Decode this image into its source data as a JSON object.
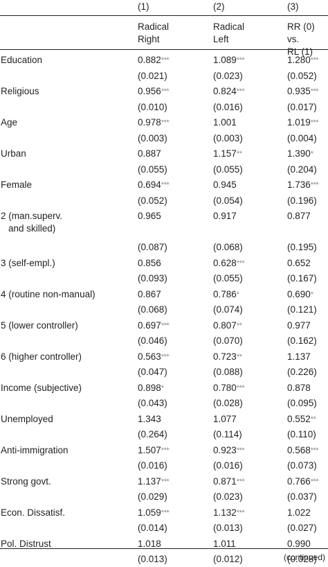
{
  "header": {
    "columns": [
      {
        "num": "(1)",
        "label_lines": [
          "Radical",
          "Right"
        ]
      },
      {
        "num": "(2)",
        "label_lines": [
          "Radical",
          "Left"
        ]
      },
      {
        "num": "(3)",
        "label_lines": [
          "RR (0) vs.",
          "RL (1)"
        ]
      }
    ]
  },
  "rows": [
    {
      "label": "Education",
      "coef": [
        [
          "0.882",
          "***"
        ],
        [
          "1.089",
          "***"
        ],
        [
          "1.280",
          "***"
        ]
      ],
      "se": [
        "(0.021)",
        "(0.023)",
        "(0.052)"
      ]
    },
    {
      "label": "Religious",
      "coef": [
        [
          "0.956",
          "***"
        ],
        [
          "0.824",
          "***"
        ],
        [
          "0.935",
          "***"
        ]
      ],
      "se": [
        "(0.010)",
        "(0.016)",
        "(0.017)"
      ]
    },
    {
      "label": "Age",
      "coef": [
        [
          "0.978",
          "***"
        ],
        [
          "1.001",
          ""
        ],
        [
          "1.019",
          "***"
        ]
      ],
      "se": [
        "(0.003)",
        "(0.003)",
        "(0.004)"
      ]
    },
    {
      "label": "Urban",
      "coef": [
        [
          "0.887",
          ""
        ],
        [
          "1.157",
          "**"
        ],
        [
          "1.390",
          "*"
        ]
      ],
      "se": [
        "(0.055)",
        "(0.055)",
        "(0.204)"
      ]
    },
    {
      "label": "Female",
      "coef": [
        [
          "0.694",
          "***"
        ],
        [
          "0.945",
          ""
        ],
        [
          "1.736",
          "***"
        ]
      ],
      "se": [
        "(0.052)",
        "(0.054)",
        "(0.196)"
      ]
    },
    {
      "label": "2 (man.superv.",
      "label2": "and skilled)",
      "coef": [
        [
          "0.965",
          ""
        ],
        [
          "0.917",
          ""
        ],
        [
          "0.877",
          ""
        ]
      ],
      "se": [
        "(0.087)",
        "(0.068)",
        "(0.195)"
      ]
    },
    {
      "label": "3 (self-empl.)",
      "coef": [
        [
          "0.856",
          ""
        ],
        [
          "0.628",
          "***"
        ],
        [
          "0.652",
          ""
        ]
      ],
      "se": [
        "(0.093)",
        "(0.055)",
        "(0.167)"
      ]
    },
    {
      "label": "4 (routine non-manual)",
      "coef": [
        [
          "0.867",
          ""
        ],
        [
          "0.786",
          "*"
        ],
        [
          "0.690",
          "*"
        ]
      ],
      "se": [
        "(0.068)",
        "(0.074)",
        "(0.121)"
      ]
    },
    {
      "label": "5 (lower controller)",
      "coef": [
        [
          "0.697",
          "***"
        ],
        [
          "0.807",
          "**"
        ],
        [
          "0.977",
          ""
        ]
      ],
      "se": [
        "(0.046)",
        "(0.070)",
        "(0.162)"
      ]
    },
    {
      "label": "6 (higher controller)",
      "coef": [
        [
          "0.563",
          "***"
        ],
        [
          "0.723",
          "**"
        ],
        [
          "1.137",
          ""
        ]
      ],
      "se": [
        "(0.047)",
        "(0.088)",
        "(0.226)"
      ]
    },
    {
      "label": "Income (subjective)",
      "coef": [
        [
          "0.898",
          "*"
        ],
        [
          "0.780",
          "***"
        ],
        [
          "0.878",
          ""
        ]
      ],
      "se": [
        "(0.043)",
        "(0.028)",
        "(0.095)"
      ]
    },
    {
      "label": "Unemployed",
      "coef": [
        [
          "1.343",
          ""
        ],
        [
          "1.077",
          ""
        ],
        [
          "0.552",
          "**"
        ]
      ],
      "se": [
        "(0.264)",
        "(0.114)",
        "(0.110)"
      ]
    },
    {
      "label": "Anti-immigration",
      "coef": [
        [
          "1.507",
          "***"
        ],
        [
          "0.923",
          "***"
        ],
        [
          "0.568",
          "***"
        ]
      ],
      "se": [
        "(0.016)",
        "(0.016)",
        "(0.073)"
      ]
    },
    {
      "label": "Strong govt.",
      "coef": [
        [
          "1.137",
          "***"
        ],
        [
          "0.871",
          "***"
        ],
        [
          "0.766",
          "***"
        ]
      ],
      "se": [
        "(0.029)",
        "(0.023)",
        "(0.037)"
      ]
    },
    {
      "label": "Econ. Dissatisf.",
      "coef": [
        [
          "1.059",
          "***"
        ],
        [
          "1.132",
          "***"
        ],
        [
          "1.022",
          ""
        ]
      ],
      "se": [
        "(0.014)",
        "(0.013)",
        "(0.027)"
      ]
    },
    {
      "label": "Pol. Distrust",
      "coef": [
        [
          "1.018",
          ""
        ],
        [
          "1.011",
          ""
        ],
        [
          "0.990",
          ""
        ]
      ],
      "se": [
        "(0.013)",
        "(0.012)",
        "(0.028)"
      ]
    }
  ],
  "footer": {
    "continued": "(continued)"
  }
}
